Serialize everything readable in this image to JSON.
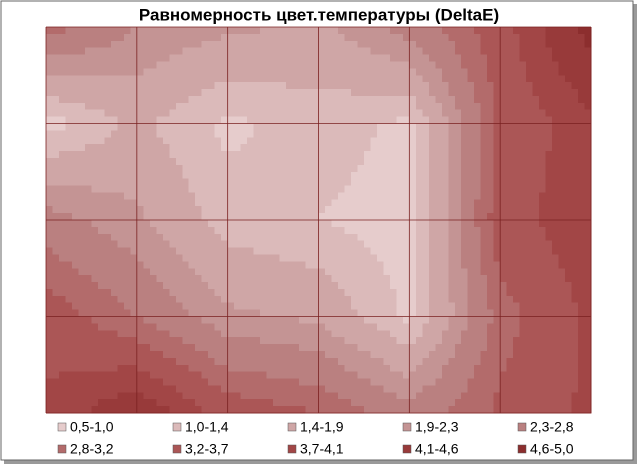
{
  "chart_data": {
    "type": "contour",
    "title": "Равномерность цвет.температуры (DeltaE)",
    "z": [
      [
        3.0,
        2.3,
        2.0,
        1.8,
        2.5,
        3.5,
        4.8
      ],
      [
        0.8,
        1.5,
        0.9,
        1.2,
        0.9,
        3.3,
        4.0
      ],
      [
        2.5,
        2.0,
        1.2,
        1.0,
        0.8,
        3.5,
        4.0
      ],
      [
        3.5,
        2.8,
        2.0,
        1.8,
        0.9,
        3.0,
        3.8
      ],
      [
        3.8,
        4.5,
        3.5,
        3.2,
        2.5,
        3.3,
        3.8
      ]
    ],
    "series": [
      {
        "name": "0,5-1,0",
        "range": [
          0.5,
          1.0
        ],
        "color": "#e6cccc"
      },
      {
        "name": "1,0-1,4",
        "range": [
          1.0,
          1.4
        ],
        "color": "#dbbaba"
      },
      {
        "name": "1,4-1,9",
        "range": [
          1.4,
          1.9
        ],
        "color": "#cfa6a6"
      },
      {
        "name": "1,9-2,3",
        "range": [
          1.9,
          2.3
        ],
        "color": "#c49494"
      },
      {
        "name": "2,3-2,8",
        "range": [
          2.3,
          2.8
        ],
        "color": "#ba8080"
      },
      {
        "name": "2,8-3,2",
        "range": [
          2.8,
          3.2
        ],
        "color": "#b36b6b"
      },
      {
        "name": "3,2-3,7",
        "range": [
          3.2,
          3.7
        ],
        "color": "#ab5656"
      },
      {
        "name": "3,7-4,1",
        "range": [
          3.7,
          4.1
        ],
        "color": "#a24646"
      },
      {
        "name": "4,1-4,6",
        "range": [
          4.1,
          4.6
        ],
        "color": "#983a3a"
      },
      {
        "name": "4,6-5,0",
        "range": [
          4.6,
          5.0
        ],
        "color": "#8c2e2e"
      }
    ]
  }
}
